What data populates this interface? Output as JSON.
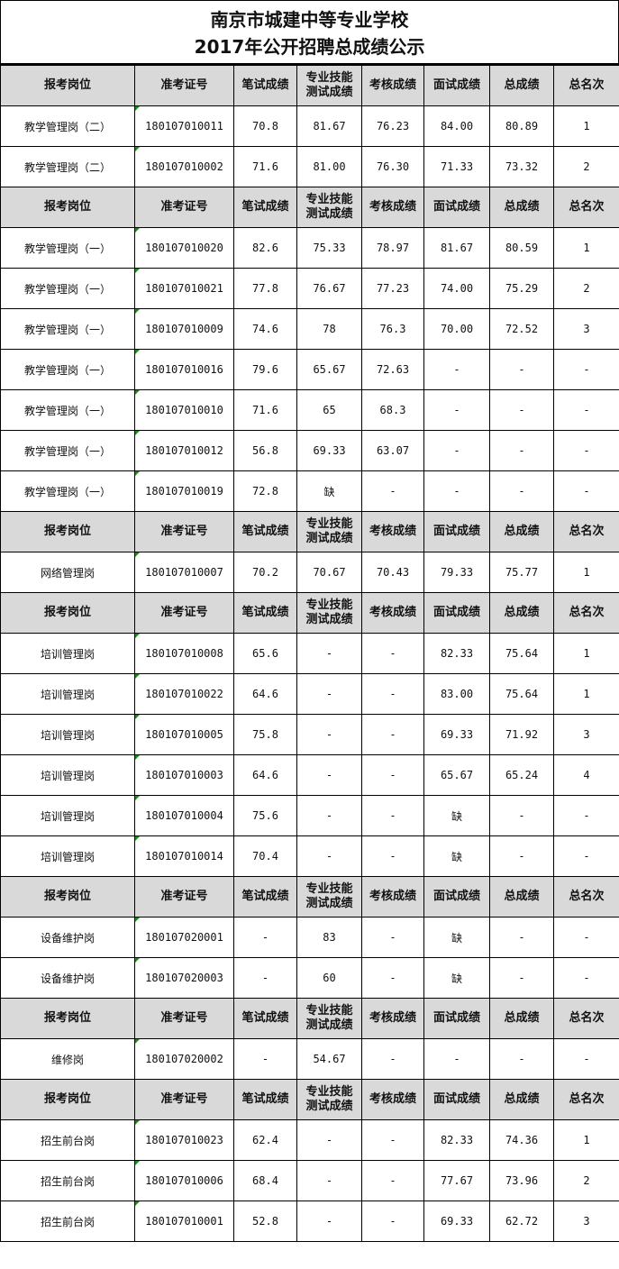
{
  "title": {
    "line1": "南京市城建中等专业学校",
    "line2": "2017年公开招聘总成绩公示"
  },
  "headers": [
    "报考岗位",
    "准考证号",
    "笔试成绩",
    "专业技能测试成绩",
    "考核成绩",
    "面试成绩",
    "总成绩",
    "总名次"
  ],
  "header_skill_lines": [
    "专业技能",
    "测试成绩"
  ],
  "sections": [
    {
      "rows": [
        [
          "教学管理岗（二）",
          "180107010011",
          "70.8",
          "81.67",
          "76.23",
          "84.00",
          "80.89",
          "1"
        ],
        [
          "教学管理岗（二）",
          "180107010002",
          "71.6",
          "81.00",
          "76.30",
          "71.33",
          "73.32",
          "2"
        ]
      ]
    },
    {
      "rows": [
        [
          "教学管理岗（一）",
          "180107010020",
          "82.6",
          "75.33",
          "78.97",
          "81.67",
          "80.59",
          "1"
        ],
        [
          "教学管理岗（一）",
          "180107010021",
          "77.8",
          "76.67",
          "77.23",
          "74.00",
          "75.29",
          "2"
        ],
        [
          "教学管理岗（一）",
          "180107010009",
          "74.6",
          "78",
          "76.3",
          "70.00",
          "72.52",
          "3"
        ],
        [
          "教学管理岗（一）",
          "180107010016",
          "79.6",
          "65.67",
          "72.63",
          "-",
          "-",
          "-"
        ],
        [
          "教学管理岗（一）",
          "180107010010",
          "71.6",
          "65",
          "68.3",
          "-",
          "-",
          "-"
        ],
        [
          "教学管理岗（一）",
          "180107010012",
          "56.8",
          "69.33",
          "63.07",
          "-",
          "-",
          "-"
        ],
        [
          "教学管理岗（一）",
          "180107010019",
          "72.8",
          "缺",
          "-",
          "-",
          "-",
          "-"
        ]
      ]
    },
    {
      "rows": [
        [
          "网络管理岗",
          "180107010007",
          "70.2",
          "70.67",
          "70.43",
          "79.33",
          "75.77",
          "1"
        ]
      ]
    },
    {
      "rows": [
        [
          "培训管理岗",
          "180107010008",
          "65.6",
          "-",
          "-",
          "82.33",
          "75.64",
          "1"
        ],
        [
          "培训管理岗",
          "180107010022",
          "64.6",
          "-",
          "-",
          "83.00",
          "75.64",
          "1"
        ],
        [
          "培训管理岗",
          "180107010005",
          "75.8",
          "-",
          "-",
          "69.33",
          "71.92",
          "3"
        ],
        [
          "培训管理岗",
          "180107010003",
          "64.6",
          "-",
          "-",
          "65.67",
          "65.24",
          "4"
        ],
        [
          "培训管理岗",
          "180107010004",
          "75.6",
          "-",
          "-",
          "缺",
          "-",
          "-"
        ],
        [
          "培训管理岗",
          "180107010014",
          "70.4",
          "-",
          "-",
          "缺",
          "-",
          "-"
        ]
      ]
    },
    {
      "rows": [
        [
          "设备维护岗",
          "180107020001",
          "-",
          "83",
          "-",
          "缺",
          "-",
          "-"
        ],
        [
          "设备维护岗",
          "180107020003",
          "-",
          "60",
          "-",
          "缺",
          "-",
          "-"
        ]
      ]
    },
    {
      "rows": [
        [
          "维修岗",
          "180107020002",
          "-",
          "54.67",
          "-",
          "-",
          "-",
          "-"
        ]
      ]
    },
    {
      "rows": [
        [
          "招生前台岗",
          "180107010023",
          "62.4",
          "-",
          "-",
          "82.33",
          "74.36",
          "1"
        ],
        [
          "招生前台岗",
          "180107010006",
          "68.4",
          "-",
          "-",
          "77.67",
          "73.96",
          "2"
        ],
        [
          "招生前台岗",
          "180107010001",
          "52.8",
          "-",
          "-",
          "69.33",
          "62.72",
          "3"
        ]
      ]
    }
  ]
}
